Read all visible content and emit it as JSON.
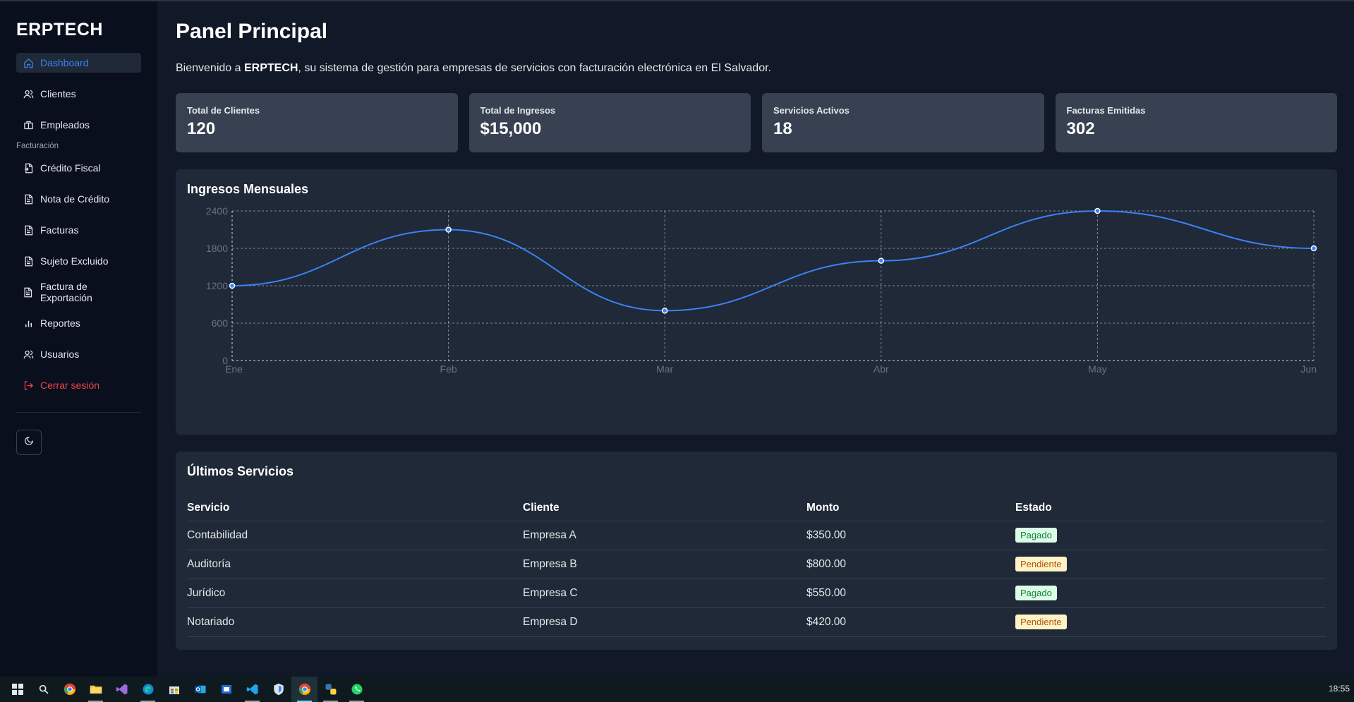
{
  "sidebar": {
    "brand": "ERPTECH",
    "items": [
      {
        "label": "Dashboard",
        "icon": "home-icon"
      },
      {
        "label": "Clientes",
        "icon": "users-icon"
      },
      {
        "label": "Empleados",
        "icon": "briefcase-icon"
      }
    ],
    "section_label": "Facturación",
    "billing_items": [
      {
        "label": "Crédito Fiscal",
        "icon": "file-icon"
      },
      {
        "label": "Nota de Crédito",
        "icon": "file-text-icon"
      },
      {
        "label": "Facturas",
        "icon": "file-text-icon"
      },
      {
        "label": "Sujeto Excluido",
        "icon": "file-text-icon"
      },
      {
        "label": "Factura de Exportación",
        "icon": "file-text-icon"
      },
      {
        "label": "Reportes",
        "icon": "bar-chart-icon"
      },
      {
        "label": "Usuarios",
        "icon": "users-icon"
      }
    ],
    "logout_label": "Cerrar sesión",
    "theme_toggle_icon": "moon-icon"
  },
  "main": {
    "title": "Panel Principal",
    "welcome_prefix": "Bienvenido a ",
    "welcome_brand": "ERPTECH",
    "welcome_suffix": ", su sistema de gestión para empresas de servicios con facturación electrónica en El Salvador.",
    "stats": [
      {
        "label": "Total de Clientes",
        "value": "120"
      },
      {
        "label": "Total de Ingresos",
        "value": "$15,000"
      },
      {
        "label": "Servicios Activos",
        "value": "18"
      },
      {
        "label": "Facturas Emitidas",
        "value": "302"
      }
    ],
    "chart_title": "Ingresos Mensuales",
    "table_title": "Últimos Servicios",
    "table": {
      "headers": [
        "Servicio",
        "Cliente",
        "Monto",
        "Estado"
      ],
      "rows": [
        [
          "Contabilidad",
          "Empresa A",
          "$350.00",
          "Pagado"
        ],
        [
          "Auditoría",
          "Empresa B",
          "$800.00",
          "Pendiente"
        ],
        [
          "Jurídico",
          "Empresa C",
          "$550.00",
          "Pagado"
        ],
        [
          "Notariado",
          "Empresa D",
          "$420.00",
          "Pendiente"
        ]
      ]
    }
  },
  "chart_data": {
    "type": "line",
    "title": "Ingresos Mensuales",
    "categories": [
      "Ene",
      "Feb",
      "Mar",
      "Abr",
      "May",
      "Jun"
    ],
    "series": [
      {
        "values": [
          1200,
          2100,
          800,
          1600,
          2400,
          1800
        ]
      }
    ],
    "ylim": [
      0,
      2400
    ],
    "yticks": [
      0,
      600,
      1200,
      1800,
      2400
    ],
    "grid": true,
    "color": "#3b82f6"
  },
  "taskbar": {
    "icons": [
      "windows-start-icon",
      "search-icon",
      "chrome-icon",
      "file-explorer-icon",
      "visual-studio-icon",
      "edge-icon",
      "store-icon",
      "outlook-icon",
      "app-icon",
      "vscode-icon",
      "shield-app-icon",
      "chrome-active-icon",
      "python-icon",
      "whatsapp-icon"
    ],
    "time": "18:55"
  },
  "colors": {
    "accent": "#3b82f6",
    "danger": "#ef4444",
    "sidebar_bg": "#0a0f1e",
    "page_bg": "#111827",
    "card_bg": "#1f2937",
    "stat_bg": "#374151"
  }
}
